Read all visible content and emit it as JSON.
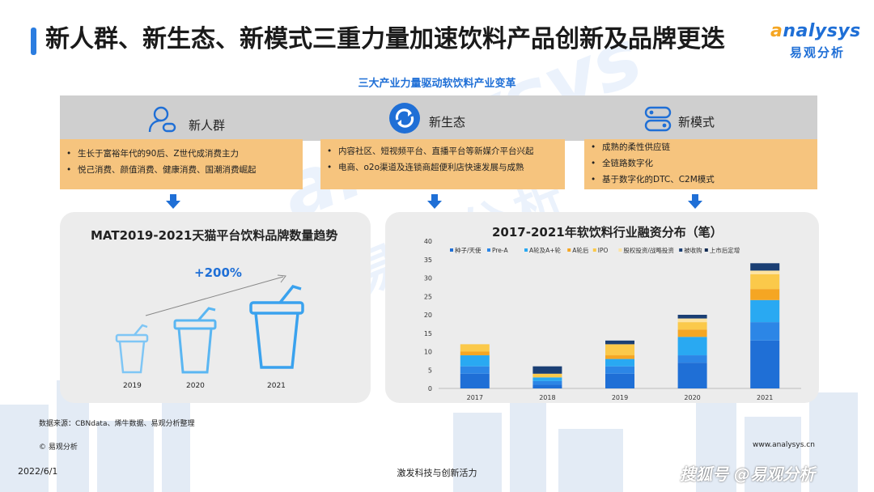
{
  "header": {
    "title": "新人群、新生态、新模式三重力量加速饮料产品创新及品牌更迭",
    "logo_en_prefix": "a",
    "logo_en_rest": "nalysys",
    "logo_cn": "易观分析"
  },
  "subtitle": "三大产业力量驱动软饮料产业变革",
  "forces": [
    {
      "label": "新人群",
      "icon": "user-icon",
      "bullets": [
        "生长于富裕年代的90后、Z世代成消费主力",
        "悦己消费、颜值消费、健康消费、国潮消费崛起"
      ]
    },
    {
      "label": "新生态",
      "icon": "refresh-icon",
      "bullets": [
        "内容社区、短视频平台、直播平台等新媒介平台兴起",
        "电商、o2o渠道及连锁商超便利店快速发展与成熟"
      ]
    },
    {
      "label": "新模式",
      "icon": "server-icon",
      "bullets": [
        "成熟的柔性供应链",
        "全链路数字化",
        "基于数字化的DTC、C2M模式"
      ]
    }
  ],
  "colors": {
    "accent": "#1f6fd6",
    "orange": "#f6c47e",
    "band": "#cfcfcf",
    "panel": "#ececec"
  },
  "left_panel": {
    "title": "MAT2019-2021天猫平台饮料品牌数量趋势",
    "growth": "+200%",
    "years": [
      "2019",
      "2020",
      "2021"
    ]
  },
  "chart_data": {
    "type": "bar",
    "stacked": true,
    "title": "2017-2021年软饮料行业融资分布（笔）",
    "categories": [
      "2017",
      "2018",
      "2019",
      "2020",
      "2021"
    ],
    "ylim": [
      0,
      40
    ],
    "yticks": [
      "0",
      "5",
      "10",
      "15",
      "20",
      "25",
      "30",
      "35",
      "40"
    ],
    "grid": false,
    "legend": "top",
    "series": [
      {
        "name": "种子/天使",
        "color": "#1f6fd6",
        "values": [
          4,
          1,
          4,
          7,
          13
        ]
      },
      {
        "name": "Pre-A",
        "color": "#2c86e6",
        "values": [
          2,
          1,
          2,
          2,
          5
        ]
      },
      {
        "name": "A轮及A+轮",
        "color": "#29a9f2",
        "values": [
          3,
          1,
          2,
          5,
          6
        ]
      },
      {
        "name": "A轮后",
        "color": "#f5a623",
        "values": [
          1,
          0,
          1,
          2,
          3
        ]
      },
      {
        "name": "IPO",
        "color": "#fbc94a",
        "values": [
          2,
          1,
          3,
          2,
          4
        ]
      },
      {
        "name": "股权投资/战略投资",
        "color": "#fde3a0",
        "values": [
          0,
          0,
          0,
          1,
          1
        ]
      },
      {
        "name": "被收购",
        "color": "#1b3f74",
        "values": [
          0,
          2,
          1,
          1,
          2
        ]
      },
      {
        "name": "上市后定增",
        "color": "#102a52",
        "values": [
          0,
          0,
          0,
          0,
          0
        ]
      }
    ]
  },
  "footer": {
    "source": "数据来源：CBNdata、烯牛数据、易观分析整理",
    "copyright": "© 易观分析",
    "website": "www.analysys.cn",
    "date": "2022/6/1",
    "slogan": "激发科技与创新活力",
    "sohu": "搜狐号 @易观分析"
  },
  "watermark": {
    "en": "analysys",
    "cn": "易观分析"
  }
}
